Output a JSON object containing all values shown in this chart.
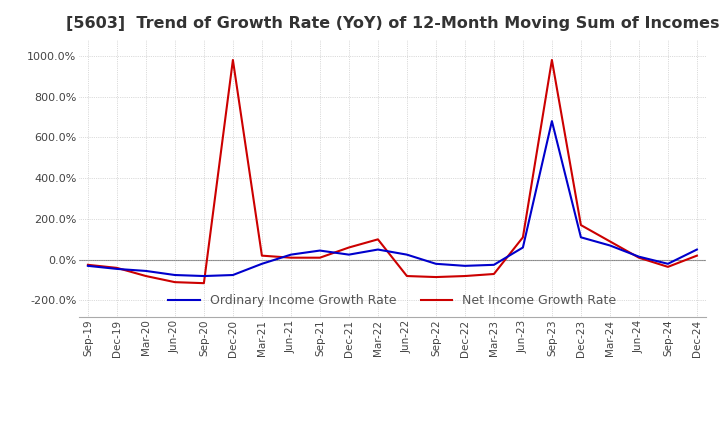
{
  "title": "[5603]  Trend of Growth Rate (YoY) of 12-Month Moving Sum of Incomes",
  "title_fontsize": 11.5,
  "title_color": "#333333",
  "legend_labels": [
    "Ordinary Income Growth Rate",
    "Net Income Growth Rate"
  ],
  "line_colors": [
    "#0000cc",
    "#cc0000"
  ],
  "ylim": [
    -280,
    1080
  ],
  "yticks": [
    -200,
    0,
    200,
    400,
    600,
    800,
    1000
  ],
  "ytick_labels": [
    "-200.0%",
    "0.0%",
    "200.0%",
    "400.0%",
    "600.0%",
    "800.0%",
    "1000.0%"
  ],
  "background_color": "#ffffff",
  "grid_color": "#bbbbbb",
  "x_labels": [
    "Sep-19",
    "Dec-19",
    "Mar-20",
    "Jun-20",
    "Sep-20",
    "Dec-20",
    "Mar-21",
    "Jun-21",
    "Sep-21",
    "Dec-21",
    "Mar-22",
    "Jun-22",
    "Sep-22",
    "Dec-22",
    "Mar-23",
    "Jun-23",
    "Sep-23",
    "Dec-23",
    "Mar-24",
    "Jun-24",
    "Sep-24",
    "Dec-24"
  ],
  "ordinary_income": [
    -30,
    -45,
    -55,
    -75,
    -80,
    -75,
    -20,
    25,
    45,
    25,
    50,
    25,
    -20,
    -30,
    -25,
    60,
    680,
    110,
    70,
    15,
    -20,
    50
  ],
  "net_income": [
    -25,
    -40,
    -80,
    -110,
    -115,
    980,
    20,
    10,
    10,
    60,
    100,
    -80,
    -85,
    -80,
    -70,
    110,
    980,
    170,
    90,
    10,
    -35,
    20
  ]
}
